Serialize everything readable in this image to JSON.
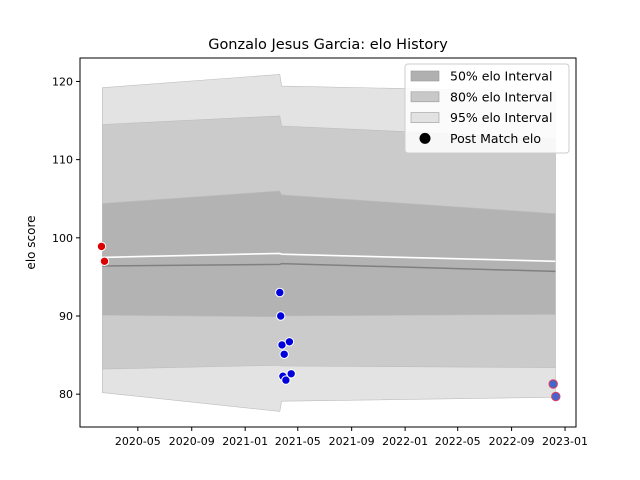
{
  "chart_data": {
    "type": "area",
    "title": "Gonzalo Jesus Garcia: elo History",
    "xlabel": "",
    "ylabel": "elo score",
    "x_ticks": [
      "2020-05",
      "2020-09",
      "2021-01",
      "2021-05",
      "2021-09",
      "2022-01",
      "2022-05",
      "2022-09",
      "2023-01"
    ],
    "y_ticks": [
      80,
      90,
      100,
      110,
      120
    ],
    "xlim": [
      "2019-12-21",
      "2023-01-26"
    ],
    "ylim": [
      75.8,
      123
    ],
    "grid": false,
    "legend_position": "top-right",
    "legend": [
      {
        "label": "50% elo Interval",
        "color": "#b0b0b0"
      },
      {
        "label": "80% elo Interval",
        "color": "#c8c8c8"
      },
      {
        "label": "95% elo Interval",
        "color": "#e2e2e2"
      },
      {
        "label": "Post Match elo",
        "color": "#000000"
      }
    ],
    "band_dates": [
      "2020-02-10",
      "2021-03-21",
      "2021-03-25",
      "2022-12-10"
    ],
    "bands": {
      "p95": {
        "lower": [
          80.2,
          77.8,
          79.1,
          79.6
        ],
        "upper": [
          119.2,
          120.9,
          119.4,
          118.7
        ],
        "color": "#e3e3e3"
      },
      "p80": {
        "lower": [
          83.2,
          83.7,
          83.6,
          83.4
        ],
        "upper": [
          114.5,
          115.6,
          114.3,
          112.7
        ],
        "color": "#cbcbcb"
      },
      "p50": {
        "lower": [
          90.1,
          89.9,
          90.0,
          90.2
        ],
        "upper": [
          104.4,
          106.0,
          105.5,
          103.1
        ],
        "color": "#b3b3b3"
      }
    },
    "mean_line": {
      "dates": [
        "2020-02-10",
        "2021-03-21",
        "2021-03-25",
        "2022-12-10"
      ],
      "values": [
        97.5,
        98.0,
        97.9,
        97.0
      ],
      "color": "#ffffff"
    },
    "median_line": {
      "dates": [
        "2020-02-10",
        "2021-03-21",
        "2021-03-25",
        "2022-12-10"
      ],
      "values": [
        96.4,
        96.6,
        96.7,
        95.7
      ],
      "color": "#808080"
    },
    "series": [
      {
        "name": "Post Match elo",
        "points": [
          {
            "date": "2020-02-08",
            "value": 98.9,
            "fill": "#dd0000",
            "edge": "#ffffff"
          },
          {
            "date": "2020-02-15",
            "value": 97.0,
            "fill": "#dd0000",
            "edge": "#ffffff"
          },
          {
            "date": "2021-03-21",
            "value": 93.0,
            "fill": "#0000dd",
            "edge": "#ffffff"
          },
          {
            "date": "2021-03-23",
            "value": 90.0,
            "fill": "#0000dd",
            "edge": "#ffffff"
          },
          {
            "date": "2021-03-26",
            "value": 86.3,
            "fill": "#0000dd",
            "edge": "#ffffff"
          },
          {
            "date": "2021-03-28",
            "value": 82.3,
            "fill": "#0000dd",
            "edge": "#ffffff"
          },
          {
            "date": "2021-03-31",
            "value": 85.1,
            "fill": "#0000dd",
            "edge": "#ffffff"
          },
          {
            "date": "2021-04-04",
            "value": 81.8,
            "fill": "#0000dd",
            "edge": "#ffffff"
          },
          {
            "date": "2021-04-12",
            "value": 86.7,
            "fill": "#0000dd",
            "edge": "#ffffff"
          },
          {
            "date": "2021-04-16",
            "value": 82.6,
            "fill": "#0000dd",
            "edge": "#ffffff"
          },
          {
            "date": "2022-12-05",
            "value": 81.3,
            "fill": "#4466cc",
            "edge": "#e04060"
          },
          {
            "date": "2022-12-11",
            "value": 79.7,
            "fill": "#4466cc",
            "edge": "#e04060"
          }
        ]
      }
    ]
  }
}
